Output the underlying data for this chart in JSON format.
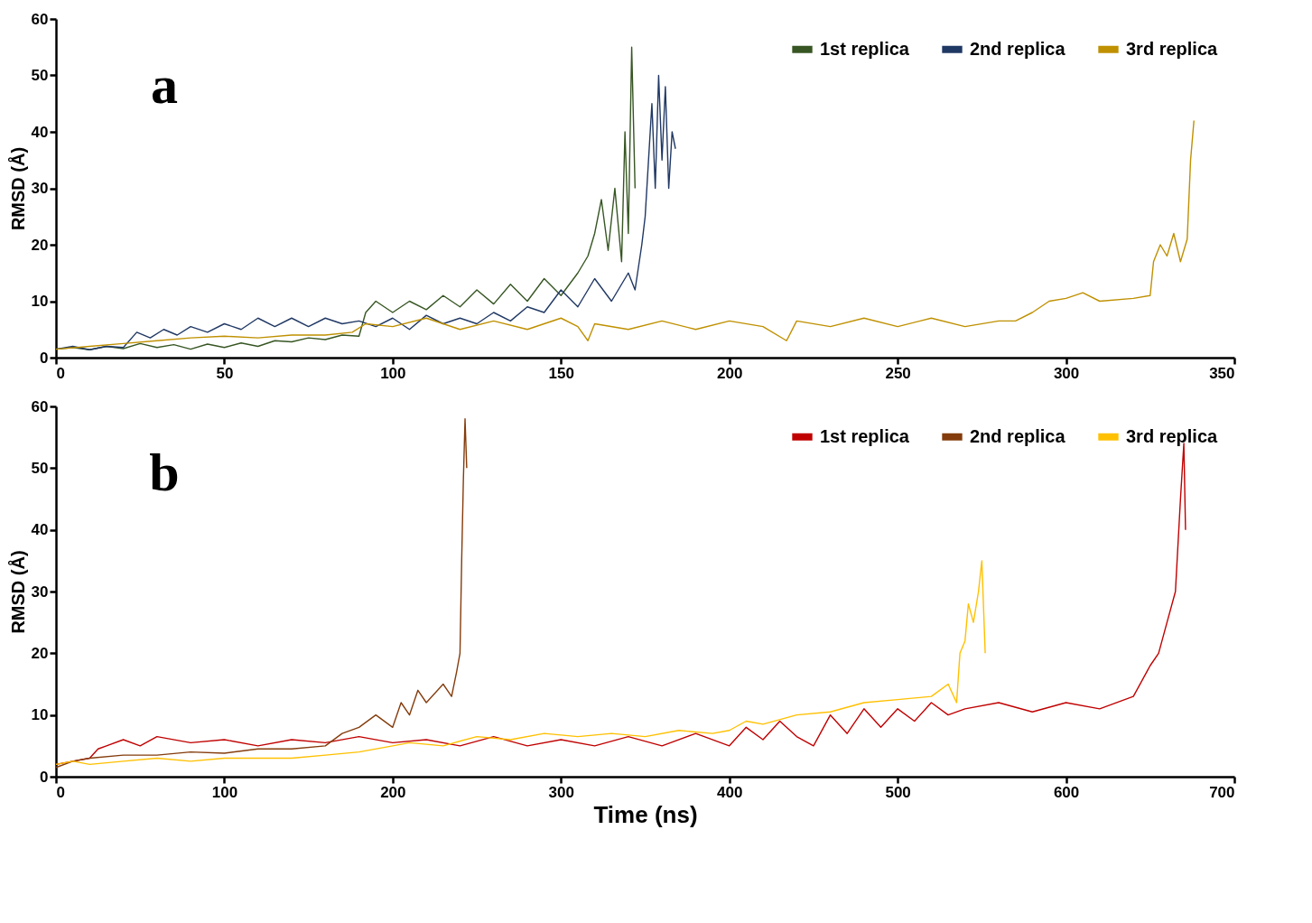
{
  "chart_data": [
    {
      "type": "line",
      "ylabel": "RMSD (Å)",
      "annotations": [
        "a"
      ],
      "legend": "top right",
      "grid": false,
      "xlim": [
        0,
        350
      ],
      "xticks": [
        0,
        50,
        100,
        150,
        200,
        250,
        300,
        350
      ],
      "ylim": [
        0,
        60
      ],
      "yticks": [
        0,
        10,
        20,
        30,
        40,
        50,
        60
      ],
      "series": [
        {
          "name": "1st replica",
          "color": "#375623",
          "x": [
            0,
            5,
            10,
            15,
            20,
            25,
            30,
            35,
            40,
            45,
            50,
            55,
            60,
            65,
            70,
            75,
            80,
            85,
            90,
            92,
            95,
            100,
            105,
            110,
            115,
            120,
            125,
            130,
            135,
            140,
            145,
            150,
            155,
            158,
            160,
            162,
            164,
            166,
            168,
            169,
            170,
            171,
            172
          ],
          "values": [
            1.5,
            1.8,
            1.4,
            2.0,
            1.6,
            2.5,
            1.8,
            2.3,
            1.5,
            2.4,
            1.8,
            2.6,
            2.0,
            3,
            2.8,
            3.5,
            3.2,
            4,
            3.8,
            8,
            10,
            8,
            10,
            8.5,
            11,
            9,
            12,
            9.5,
            13,
            10,
            14,
            11,
            15,
            18,
            22,
            28,
            19,
            30,
            17,
            40,
            22,
            55,
            30
          ]
        },
        {
          "name": "2nd replica",
          "color": "#203864",
          "x": [
            0,
            5,
            10,
            15,
            20,
            24,
            28,
            32,
            36,
            40,
            45,
            50,
            55,
            60,
            65,
            70,
            75,
            80,
            85,
            90,
            95,
            100,
            105,
            110,
            115,
            120,
            125,
            130,
            135,
            140,
            145,
            150,
            155,
            160,
            165,
            170,
            172,
            174,
            175,
            176,
            177,
            178,
            179,
            180,
            181,
            182,
            183,
            184
          ],
          "values": [
            1.5,
            2,
            1.4,
            2,
            1.8,
            4.5,
            3.5,
            5,
            4,
            5.5,
            4.5,
            6,
            5,
            7,
            5.5,
            7,
            5.5,
            7,
            6,
            6.5,
            5.5,
            7,
            5,
            7.5,
            6,
            7,
            6,
            8,
            6.5,
            9,
            8,
            12,
            9,
            14,
            10,
            15,
            12,
            20,
            25,
            35,
            45,
            30,
            50,
            35,
            48,
            30,
            40,
            37
          ]
        },
        {
          "name": "3rd replica",
          "color": "#bf9000",
          "x": [
            0,
            10,
            20,
            30,
            40,
            50,
            60,
            70,
            80,
            88,
            92,
            100,
            110,
            120,
            130,
            140,
            150,
            155,
            158,
            160,
            170,
            180,
            190,
            200,
            210,
            217,
            220,
            230,
            240,
            250,
            260,
            270,
            280,
            285,
            290,
            295,
            300,
            305,
            310,
            320,
            325,
            326,
            328,
            330,
            332,
            334,
            336,
            337,
            338
          ],
          "values": [
            1.5,
            2,
            2.5,
            3,
            3.5,
            3.8,
            3.5,
            4,
            4,
            4.5,
            6,
            5.5,
            7,
            5,
            6.5,
            5,
            7,
            5.5,
            3,
            6,
            5,
            6.5,
            5,
            6.5,
            5.5,
            3,
            6.5,
            5.5,
            7,
            5.5,
            7,
            5.5,
            6.5,
            6.5,
            8,
            10,
            10.5,
            11.5,
            10,
            10.5,
            11,
            17,
            20,
            18,
            22,
            17,
            21,
            35,
            42
          ]
        }
      ]
    },
    {
      "type": "line",
      "xlabel": "Time (ns)",
      "ylabel": "RMSD (Å)",
      "annotations": [
        "b"
      ],
      "legend": "top right",
      "grid": false,
      "xlim": [
        0,
        700
      ],
      "xticks": [
        0,
        100,
        200,
        300,
        400,
        500,
        600,
        700
      ],
      "ylim": [
        0,
        60
      ],
      "yticks": [
        0,
        10,
        20,
        30,
        40,
        50,
        60
      ],
      "series": [
        {
          "name": "1st replica",
          "color": "#c00000",
          "x": [
            0,
            10,
            20,
            25,
            30,
            40,
            50,
            60,
            80,
            100,
            120,
            140,
            160,
            180,
            200,
            220,
            240,
            260,
            280,
            300,
            320,
            340,
            360,
            380,
            400,
            410,
            420,
            430,
            440,
            450,
            460,
            470,
            480,
            490,
            500,
            510,
            520,
            530,
            540,
            560,
            580,
            600,
            620,
            640,
            650,
            655,
            660,
            665,
            668,
            670,
            671
          ],
          "values": [
            2,
            2.5,
            3,
            4.5,
            5,
            6,
            5,
            6.5,
            5.5,
            6,
            5,
            6,
            5.5,
            6.5,
            5.5,
            6,
            5,
            6.5,
            5,
            6,
            5,
            6.5,
            5,
            7,
            5,
            8,
            6,
            9,
            6.5,
            5,
            10,
            7,
            11,
            8,
            11,
            9,
            12,
            10,
            11,
            12,
            10.5,
            12,
            11,
            13,
            18,
            20,
            25,
            30,
            45,
            54,
            40
          ]
        },
        {
          "name": "2nd replica",
          "color": "#843c0c",
          "x": [
            0,
            10,
            20,
            40,
            60,
            80,
            100,
            120,
            140,
            160,
            170,
            180,
            190,
            200,
            205,
            210,
            215,
            220,
            230,
            235,
            238,
            240,
            241,
            242,
            243,
            244
          ],
          "values": [
            1.5,
            2.5,
            3,
            3.5,
            3.5,
            4,
            3.8,
            4.5,
            4.5,
            5,
            7,
            8,
            10,
            8,
            12,
            10,
            14,
            12,
            15,
            13,
            17,
            20,
            35,
            48,
            58,
            50
          ]
        },
        {
          "name": "3rd replica",
          "color": "#ffc000",
          "x": [
            0,
            10,
            20,
            40,
            60,
            80,
            100,
            120,
            140,
            160,
            180,
            200,
            210,
            230,
            250,
            270,
            290,
            310,
            330,
            350,
            370,
            390,
            400,
            410,
            420,
            440,
            460,
            480,
            500,
            520,
            530,
            535,
            537,
            540,
            542,
            545,
            548,
            550,
            552
          ],
          "values": [
            2,
            2.5,
            2,
            2.5,
            3,
            2.5,
            3,
            3,
            3,
            3.5,
            4,
            5,
            5.5,
            5,
            6.5,
            6,
            7,
            6.5,
            7,
            6.5,
            7.5,
            7,
            7.5,
            9,
            8.5,
            10,
            10.5,
            12,
            12.5,
            13,
            15,
            12,
            20,
            22,
            28,
            25,
            30,
            35,
            20
          ]
        }
      ]
    }
  ]
}
